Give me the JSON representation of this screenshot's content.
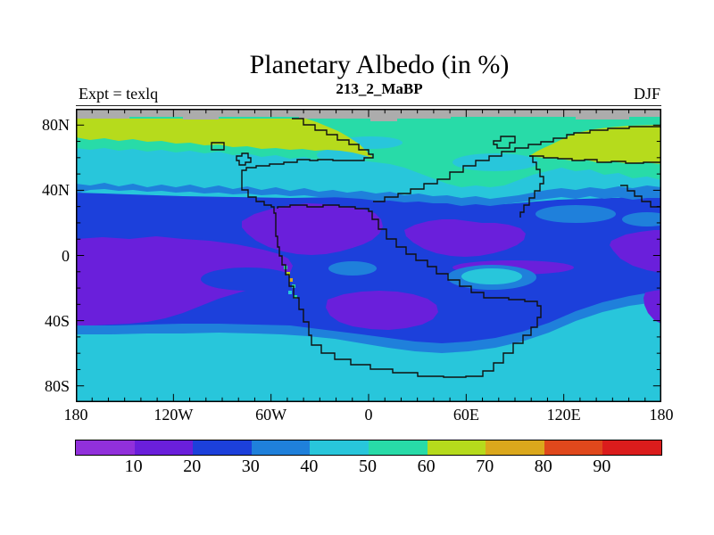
{
  "title": "Planetary Albedo (in %)",
  "subtitle": "213_2_MaBP",
  "annotations": {
    "left": "Expt = texlq",
    "right": "DJF"
  },
  "axes": {
    "lat_tick_labels": [
      "80N",
      "40N",
      "0",
      "40S",
      "80S"
    ],
    "lon_tick_labels": [
      "180",
      "120W",
      "60W",
      "0",
      "60E",
      "120E",
      "180"
    ],
    "lat_label_step_deg": 40,
    "lon_label_step_deg": 60,
    "minor_tick_step_deg": 10
  },
  "colorbar": {
    "labels": [
      "10",
      "20",
      "30",
      "40",
      "50",
      "60",
      "70",
      "80",
      "90"
    ],
    "colors": [
      "#9130DB",
      "#6A1FDB",
      "#1C40DB",
      "#1F80DB",
      "#28C6DB",
      "#28DBA8",
      "#B6DB1C",
      "#DBA81C",
      "#E0481C",
      "#DB1C1C"
    ],
    "no_data_color": "#ACACAC"
  },
  "chart_data": {
    "type": "filled_contour_map",
    "variable": "Planetary Albedo (in %)",
    "experiment": "texlq",
    "time_label": "213_2_MaBP",
    "season": "DJF",
    "lon_range": [
      -180,
      180
    ],
    "lat_range": [
      -90,
      90
    ],
    "contour_levels": [
      0,
      10,
      20,
      30,
      40,
      50,
      60,
      70,
      80,
      90,
      100
    ],
    "legend_position": "bottom",
    "grid": false,
    "zonal_bands": [
      {
        "lat": "90N-86N",
        "albedo": "no data / polar night (gray strip)"
      },
      {
        "lat": "86N-70N west of 0E",
        "albedo": "60-70 (yellow-green band)"
      },
      {
        "lat": "78N-56N, 100E-180",
        "albedo": "60-70 (yellow-green diagonal patch)"
      },
      {
        "lat": "86N-55N elsewhere",
        "albedo": "50-60 (teal) with 40-50 cyan patches"
      },
      {
        "lat": "55N-42N",
        "albedo": "40-50 (cyan)"
      },
      {
        "lat": "42N-34N",
        "albedo": "30-40 (mid blue band)"
      },
      {
        "lat": "34N-45S",
        "albedo": "20-30 (blue) with 10-20 violet tropical blobs"
      },
      {
        "lat": "45S-52S",
        "albedo": "30-40 (mid blue band)"
      },
      {
        "lat": "52S-90S",
        "albedo": "40-50 (cyan to the pole)"
      }
    ],
    "notable_features": [
      "Large 10-20% albedo (violet) regions over the tropical continental interior (~80W-10E, 30N-0), the NE tropics (~20E-95E, 16N-10S), western Panthalassa (180W-95W, 10N-40S), a south-central blob (25W-50E, 20S-45S) and far-east patches near 180",
      "40-50% cyan lens at ~10E-50E, 8S-20S ringed by 30-40%",
      "Small high-albedo (50-80%) speckles along the western cordillera near 50W, 5S-25S",
      "Stepped black Triassic paleo-coastline outlines (Pangaea), southern landmass dipping to ~75S, NE icy landmass outlined around the yellow-green patch",
      "Gray no-data strip along the top edge (~90N-86N)"
    ]
  }
}
